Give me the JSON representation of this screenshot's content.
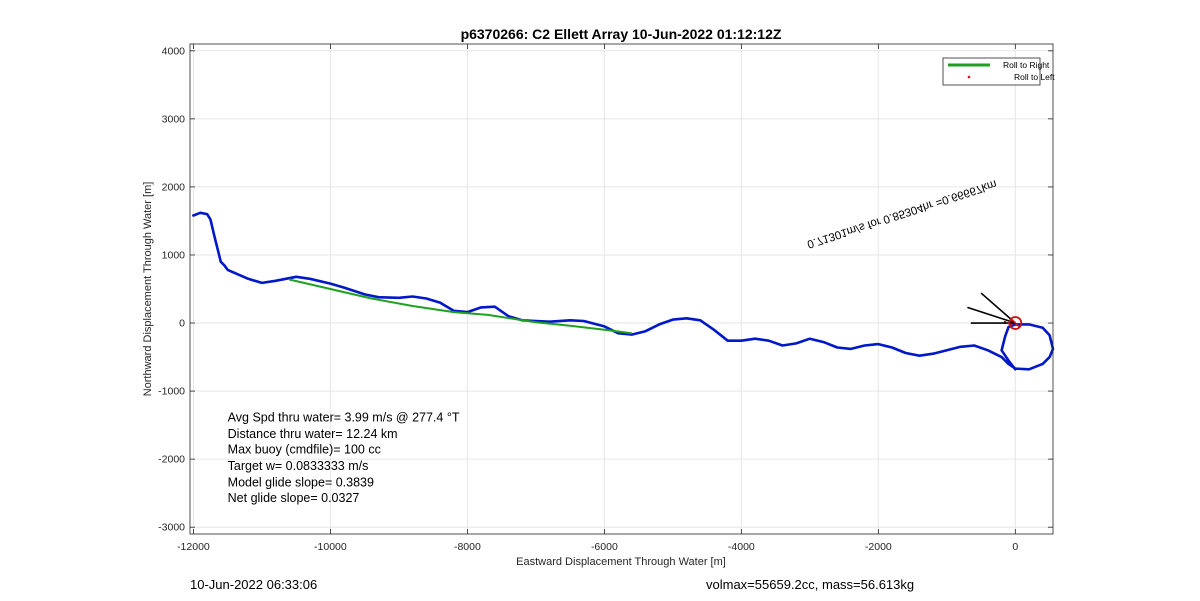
{
  "chart_data": {
    "type": "line",
    "title": "p6370266: C2 Ellett Array 10-Jun-2022 01:12:12Z",
    "xlabel": "Eastward Displacement Through Water [m]",
    "ylabel": "Northward Displacement Through Water [m]",
    "xlim": [
      -12050,
      550
    ],
    "ylim": [
      -3100,
      4100
    ],
    "xticks": [
      -12000,
      -10000,
      -8000,
      -6000,
      -4000,
      -2000,
      0
    ],
    "xtick_labels": [
      "-12000",
      "-10000",
      "-8000",
      "-6000",
      "-4000",
      "-2000",
      "0"
    ],
    "yticks": [
      -3000,
      -2000,
      -1000,
      0,
      1000,
      2000,
      3000,
      4000
    ],
    "ytick_labels": [
      "-3000",
      "-2000",
      "-1000",
      "0",
      "1000",
      "2000",
      "3000",
      "4000"
    ],
    "grid": true,
    "legend_position": "top-right",
    "series": [
      {
        "name": "",
        "color": "#0018c8",
        "x": [
          -12000,
          -11900,
          -11800,
          -11750,
          -11700,
          -11650,
          -11600,
          -11550,
          -11500,
          -11200,
          -11000,
          -10800,
          -10500,
          -10300,
          -10000,
          -9800,
          -9500,
          -9300,
          -9000,
          -8800,
          -8600,
          -8400,
          -8200,
          -8000,
          -7800,
          -7600,
          -7400,
          -7200,
          -7000,
          -6800,
          -6500,
          -6300,
          -6000,
          -5800,
          -5600,
          -5400,
          -5200,
          -5000,
          -4800,
          -4600,
          -4400,
          -4200,
          -4000,
          -3800,
          -3600,
          -3400,
          -3200,
          -3000,
          -2800,
          -2600,
          -2400,
          -2200,
          -2000,
          -1800,
          -1600,
          -1400,
          -1200,
          -1000,
          -800,
          -600,
          -400,
          -200,
          -100,
          0,
          200,
          400,
          500,
          550,
          500,
          400,
          200,
          0,
          -100,
          -150,
          -200,
          -100,
          0
        ],
        "y": [
          1580,
          1620,
          1600,
          1520,
          1300,
          1100,
          900,
          850,
          780,
          650,
          590,
          620,
          680,
          650,
          580,
          520,
          420,
          380,
          370,
          390,
          360,
          300,
          180,
          160,
          230,
          240,
          100,
          40,
          30,
          20,
          40,
          30,
          -50,
          -150,
          -170,
          -120,
          -20,
          50,
          70,
          40,
          -100,
          -260,
          -260,
          -230,
          -260,
          -330,
          -300,
          -230,
          -280,
          -360,
          -380,
          -330,
          -310,
          -360,
          -440,
          -480,
          -450,
          -400,
          -350,
          -330,
          -400,
          -500,
          -600,
          -670,
          -680,
          -600,
          -500,
          -380,
          -180,
          -70,
          -20,
          -20,
          -60,
          -200,
          -400,
          -550,
          -680
        ]
      },
      {
        "name": "Roll to Right",
        "color": "#20a020",
        "x": [
          -10600,
          -10000,
          -9400,
          -8800,
          -8200,
          -7700,
          -7000,
          -6500,
          -6000,
          -5600
        ],
        "y": [
          640,
          500,
          360,
          250,
          160,
          120,
          10,
          -40,
          -100,
          -150
        ]
      },
      {
        "name": "Roll to Left",
        "color": "#e01020",
        "x": [
          -150,
          -60
        ],
        "y": [
          10,
          -10
        ]
      }
    ],
    "annotations": [
      {
        "text": "Avg Spd thru water=  3.99 m/s @ 277.4 °T",
        "x": -11500,
        "y": -1450
      },
      {
        "text": "Distance thru water= 12.24 km",
        "x": -11500,
        "y": -1690
      },
      {
        "text": "Max buoy (cmdfile)= 100 cc",
        "x": -11500,
        "y": -1920
      },
      {
        "text": "Target w= 0.0833333 m/s",
        "x": -11500,
        "y": -2160
      },
      {
        "text": "Model glide slope= 0.3839",
        "x": -11500,
        "y": -2400
      },
      {
        "text": "Net glide slope= 0.0327",
        "x": -11500,
        "y": -2630
      },
      {
        "text": "0.71301m/s for 0.85304hr =0.66667km",
        "x": -3050,
        "y": 1200,
        "rotation": 162,
        "flipped": true
      }
    ],
    "marker": {
      "x": 0,
      "y": 0,
      "color": "#cc1010"
    },
    "arrows": [
      {
        "x1": 0,
        "y1": 0,
        "x2": -500,
        "y2": 440
      },
      {
        "x1": 0,
        "y1": 0,
        "x2": -650,
        "y2": 0
      },
      {
        "x1": 0,
        "y1": 0,
        "x2": -700,
        "y2": 230
      }
    ]
  },
  "footer": {
    "left": "10-Jun-2022 06:33:06",
    "right": "volmax=55659.2cc, mass=56.613kg"
  }
}
